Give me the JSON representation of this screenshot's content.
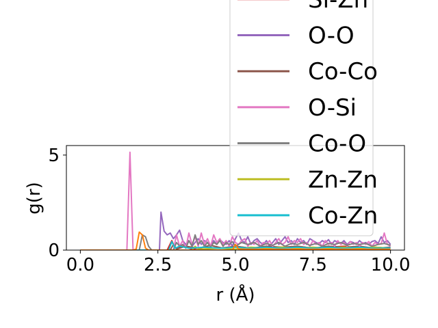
{
  "chart_data": {
    "type": "line",
    "xlabel": "r (Å)",
    "ylabel": "g(r)",
    "xlim": [
      -0.45,
      10.45
    ],
    "ylim": [
      0,
      5.5
    ],
    "x_ticks": [
      "0.0",
      "2.5",
      "5.0",
      "7.5",
      "10.0"
    ],
    "x_tick_values": [
      0,
      2.5,
      5,
      7.5,
      10
    ],
    "y_ticks": [
      "0",
      "5"
    ],
    "y_tick_values": [
      0,
      5
    ],
    "grid": false,
    "legend_position": "upper-right (extends above the axes)",
    "series": [
      {
        "name": "Si-Zn",
        "color": "#d62728",
        "points": [
          [
            0,
            0
          ],
          [
            2.8,
            0
          ],
          [
            2.95,
            0.5
          ],
          [
            3.05,
            0.1
          ],
          [
            3.3,
            0.2
          ],
          [
            3.6,
            0.05
          ],
          [
            4.0,
            0.15
          ],
          [
            4.5,
            0.1
          ],
          [
            5.0,
            0.2
          ],
          [
            5.5,
            0.1
          ],
          [
            6.0,
            0.15
          ],
          [
            6.5,
            0.1
          ],
          [
            7.0,
            0.2
          ],
          [
            7.5,
            0.1
          ],
          [
            8.0,
            0.15
          ],
          [
            8.5,
            0.2
          ],
          [
            9.0,
            0.1
          ],
          [
            9.5,
            0.15
          ],
          [
            10.0,
            0.1
          ]
        ]
      },
      {
        "name": "O-O",
        "color": "#9467bd",
        "points": [
          [
            0,
            0
          ],
          [
            2.55,
            0
          ],
          [
            2.6,
            2.0
          ],
          [
            2.7,
            1.0
          ],
          [
            2.8,
            0.8
          ],
          [
            2.9,
            0.9
          ],
          [
            3.0,
            0.6
          ],
          [
            3.1,
            0.8
          ],
          [
            3.2,
            1.05
          ],
          [
            3.3,
            0.5
          ],
          [
            3.4,
            0.3
          ],
          [
            3.5,
            0.5
          ],
          [
            3.6,
            0.2
          ],
          [
            3.7,
            0.4
          ],
          [
            3.8,
            0.6
          ],
          [
            3.9,
            0.3
          ],
          [
            4.0,
            0.5
          ],
          [
            4.1,
            0.4
          ],
          [
            4.2,
            0.2
          ],
          [
            4.3,
            0.5
          ],
          [
            4.4,
            0.3
          ],
          [
            4.5,
            0.55
          ],
          [
            4.6,
            0.4
          ],
          [
            4.7,
            0.3
          ],
          [
            4.8,
            0.5
          ],
          [
            4.9,
            0.2
          ],
          [
            5.0,
            0.6
          ],
          [
            5.1,
            0.9
          ],
          [
            5.2,
            0.5
          ],
          [
            5.3,
            0.4
          ],
          [
            5.4,
            0.7
          ],
          [
            5.5,
            0.3
          ],
          [
            5.6,
            0.5
          ],
          [
            5.7,
            0.6
          ],
          [
            5.8,
            0.4
          ],
          [
            5.9,
            0.3
          ],
          [
            6.0,
            0.5
          ],
          [
            6.1,
            0.2
          ],
          [
            6.2,
            0.4
          ],
          [
            6.3,
            0.6
          ],
          [
            6.4,
            0.3
          ],
          [
            6.5,
            0.5
          ],
          [
            6.6,
            0.7
          ],
          [
            6.7,
            0.4
          ],
          [
            6.8,
            0.5
          ],
          [
            6.9,
            0.3
          ],
          [
            7.0,
            0.6
          ],
          [
            7.1,
            0.4
          ],
          [
            7.2,
            0.5
          ],
          [
            7.3,
            0.3
          ],
          [
            7.4,
            0.6
          ],
          [
            7.5,
            0.5
          ],
          [
            7.6,
            0.4
          ],
          [
            7.7,
            0.35
          ],
          [
            7.8,
            0.5
          ],
          [
            7.9,
            0.4
          ],
          [
            8.0,
            0.55
          ],
          [
            8.1,
            0.3
          ],
          [
            8.2,
            0.5
          ],
          [
            8.3,
            0.4
          ],
          [
            8.4,
            0.35
          ],
          [
            8.5,
            0.5
          ],
          [
            8.6,
            0.3
          ],
          [
            8.7,
            0.45
          ],
          [
            8.8,
            0.4
          ],
          [
            8.9,
            0.3
          ],
          [
            9.0,
            0.5
          ],
          [
            9.1,
            0.35
          ],
          [
            9.2,
            0.4
          ],
          [
            9.3,
            0.3
          ],
          [
            9.4,
            0.45
          ],
          [
            9.5,
            0.5
          ],
          [
            9.6,
            0.35
          ],
          [
            9.7,
            0.7
          ],
          [
            9.8,
            0.4
          ],
          [
            9.9,
            0.5
          ],
          [
            10.0,
            0.3
          ]
        ]
      },
      {
        "name": "Co-Co",
        "color": "#8c564b",
        "points": [
          [
            0,
            0
          ],
          [
            2.9,
            0
          ],
          [
            3.0,
            0.3
          ],
          [
            3.1,
            0.05
          ],
          [
            3.4,
            0.2
          ],
          [
            3.8,
            0.1
          ],
          [
            4.2,
            0.25
          ],
          [
            4.6,
            0.1
          ],
          [
            5.0,
            0.2
          ],
          [
            5.5,
            0.1
          ],
          [
            6.0,
            0.2
          ],
          [
            6.5,
            0.15
          ],
          [
            7.0,
            0.2
          ],
          [
            7.5,
            0.1
          ],
          [
            8.0,
            0.2
          ],
          [
            8.5,
            0.15
          ],
          [
            9.0,
            0.2
          ],
          [
            9.5,
            0.1
          ],
          [
            10.0,
            0.15
          ]
        ]
      },
      {
        "name": "O-Si",
        "color": "#e377c2",
        "points": [
          [
            0,
            0
          ],
          [
            1.5,
            0
          ],
          [
            1.6,
            5.15
          ],
          [
            1.7,
            0
          ],
          [
            3.0,
            0
          ],
          [
            3.1,
            0.8
          ],
          [
            3.2,
            0.2
          ],
          [
            3.3,
            0.5
          ],
          [
            3.4,
            0.1
          ],
          [
            3.5,
            0.9
          ],
          [
            3.6,
            0.3
          ],
          [
            3.7,
            0.7
          ],
          [
            3.8,
            0.2
          ],
          [
            3.9,
            0.9
          ],
          [
            4.0,
            0.3
          ],
          [
            4.1,
            0.6
          ],
          [
            4.2,
            0.2
          ],
          [
            4.3,
            0.8
          ],
          [
            4.4,
            0.4
          ],
          [
            4.5,
            0.6
          ],
          [
            4.6,
            0.3
          ],
          [
            4.7,
            0.5
          ],
          [
            4.8,
            0.2
          ],
          [
            4.9,
            0.7
          ],
          [
            5.0,
            0.4
          ],
          [
            5.1,
            0.3
          ],
          [
            5.2,
            0.5
          ],
          [
            5.3,
            0.6
          ],
          [
            5.4,
            0.2
          ],
          [
            5.5,
            0.4
          ],
          [
            5.6,
            0.3
          ],
          [
            5.7,
            0.5
          ],
          [
            5.8,
            0.2
          ],
          [
            5.9,
            0.4
          ],
          [
            6.0,
            0.3
          ],
          [
            6.1,
            0.5
          ],
          [
            6.2,
            0.2
          ],
          [
            6.3,
            0.4
          ],
          [
            6.4,
            0.6
          ],
          [
            6.5,
            0.3
          ],
          [
            6.6,
            0.4
          ],
          [
            6.7,
            0.7
          ],
          [
            6.8,
            0.3
          ],
          [
            6.9,
            0.5
          ],
          [
            7.0,
            0.4
          ],
          [
            7.1,
            0.6
          ],
          [
            7.2,
            0.3
          ],
          [
            7.3,
            0.4
          ],
          [
            7.4,
            0.2
          ],
          [
            7.5,
            0.5
          ],
          [
            7.6,
            0.3
          ],
          [
            7.7,
            0.4
          ],
          [
            7.8,
            0.2
          ],
          [
            7.9,
            0.5
          ],
          [
            8.0,
            0.3
          ],
          [
            8.1,
            0.4
          ],
          [
            8.2,
            0.2
          ],
          [
            8.3,
            0.5
          ],
          [
            8.4,
            0.3
          ],
          [
            8.5,
            0.4
          ],
          [
            8.6,
            0.2
          ],
          [
            8.7,
            0.45
          ],
          [
            8.8,
            0.3
          ],
          [
            8.9,
            0.4
          ],
          [
            9.0,
            0.2
          ],
          [
            9.1,
            0.4
          ],
          [
            9.2,
            0.3
          ],
          [
            9.3,
            0.45
          ],
          [
            9.4,
            0.2
          ],
          [
            9.5,
            0.4
          ],
          [
            9.6,
            0.3
          ],
          [
            9.7,
            0.35
          ],
          [
            9.8,
            0.9
          ],
          [
            9.9,
            0.3
          ],
          [
            10.0,
            0.2
          ]
        ]
      },
      {
        "name": "Co-O",
        "color": "#7f7f7f",
        "points": [
          [
            0,
            0
          ],
          [
            1.9,
            0
          ],
          [
            2.0,
            0.8
          ],
          [
            2.1,
            0.7
          ],
          [
            2.2,
            0.2
          ],
          [
            2.3,
            0
          ],
          [
            3.0,
            0
          ],
          [
            3.1,
            0.4
          ],
          [
            3.2,
            0.2
          ],
          [
            3.3,
            0.3
          ],
          [
            3.4,
            0.1
          ],
          [
            3.5,
            0.5
          ],
          [
            3.6,
            0.2
          ],
          [
            3.7,
            0.8
          ],
          [
            3.8,
            0.3
          ],
          [
            3.9,
            0.5
          ],
          [
            4.0,
            0.2
          ],
          [
            4.1,
            0.4
          ],
          [
            4.2,
            0.15
          ],
          [
            4.3,
            0.4
          ],
          [
            4.4,
            0.3
          ],
          [
            4.5,
            0.5
          ],
          [
            4.6,
            0.2
          ],
          [
            4.7,
            0.4
          ],
          [
            4.8,
            0.3
          ],
          [
            4.9,
            0.45
          ],
          [
            5.0,
            0.2
          ],
          [
            5.2,
            0.4
          ],
          [
            5.4,
            0.3
          ],
          [
            5.6,
            0.4
          ],
          [
            5.8,
            0.2
          ],
          [
            6.0,
            0.35
          ],
          [
            6.2,
            0.25
          ],
          [
            6.4,
            0.4
          ],
          [
            6.6,
            0.2
          ],
          [
            6.8,
            0.35
          ],
          [
            7.0,
            0.3
          ],
          [
            7.2,
            0.4
          ],
          [
            7.4,
            0.25
          ],
          [
            7.6,
            0.35
          ],
          [
            7.8,
            0.2
          ],
          [
            8.0,
            0.35
          ],
          [
            8.2,
            0.3
          ],
          [
            8.4,
            0.4
          ],
          [
            8.6,
            0.25
          ],
          [
            8.8,
            0.35
          ],
          [
            9.0,
            0.3
          ],
          [
            9.2,
            0.35
          ],
          [
            9.4,
            0.2
          ],
          [
            9.6,
            0.3
          ],
          [
            9.8,
            0.35
          ],
          [
            10.0,
            0.25
          ]
        ]
      },
      {
        "name": "Zn-Zn",
        "color": "#bcbd22",
        "points": [
          [
            0,
            0
          ],
          [
            3.6,
            0
          ],
          [
            3.7,
            0.2
          ],
          [
            3.8,
            0.05
          ],
          [
            4.5,
            0.1
          ],
          [
            5.0,
            0.05
          ],
          [
            5.5,
            0.15
          ],
          [
            6.0,
            0.1
          ],
          [
            6.5,
            0.15
          ],
          [
            7.0,
            0.1
          ],
          [
            7.5,
            0.15
          ],
          [
            8.0,
            0.1
          ],
          [
            8.5,
            0.15
          ],
          [
            9.0,
            0.1
          ],
          [
            9.5,
            0.15
          ],
          [
            10.0,
            0.1
          ]
        ]
      },
      {
        "name": "Co-Zn",
        "color": "#17becf",
        "points": [
          [
            0,
            0
          ],
          [
            2.85,
            0
          ],
          [
            2.95,
            0.45
          ],
          [
            3.05,
            0.1
          ],
          [
            3.2,
            0.2
          ],
          [
            3.5,
            0.1
          ],
          [
            4.0,
            0.15
          ],
          [
            4.5,
            0.1
          ],
          [
            5.0,
            0.15
          ],
          [
            5.5,
            0.1
          ],
          [
            6.0,
            0.15
          ],
          [
            6.5,
            0.1
          ],
          [
            7.0,
            0.15
          ],
          [
            7.5,
            0.1
          ],
          [
            8.0,
            0.15
          ],
          [
            8.5,
            0.1
          ],
          [
            9.0,
            0.15
          ],
          [
            9.5,
            0.1
          ],
          [
            10.0,
            0.12
          ]
        ]
      },
      {
        "name": "",
        "color": "#ff7f0e",
        "points": [
          [
            0,
            0
          ],
          [
            1.7,
            0
          ],
          [
            1.8,
            0.05
          ],
          [
            1.9,
            0.95
          ],
          [
            2.0,
            0.8
          ],
          [
            2.1,
            0.1
          ],
          [
            2.2,
            0
          ],
          [
            4.9,
            0
          ],
          [
            5.0,
            0.3
          ],
          [
            5.1,
            0.05
          ],
          [
            10.0,
            0.05
          ]
        ]
      }
    ]
  }
}
